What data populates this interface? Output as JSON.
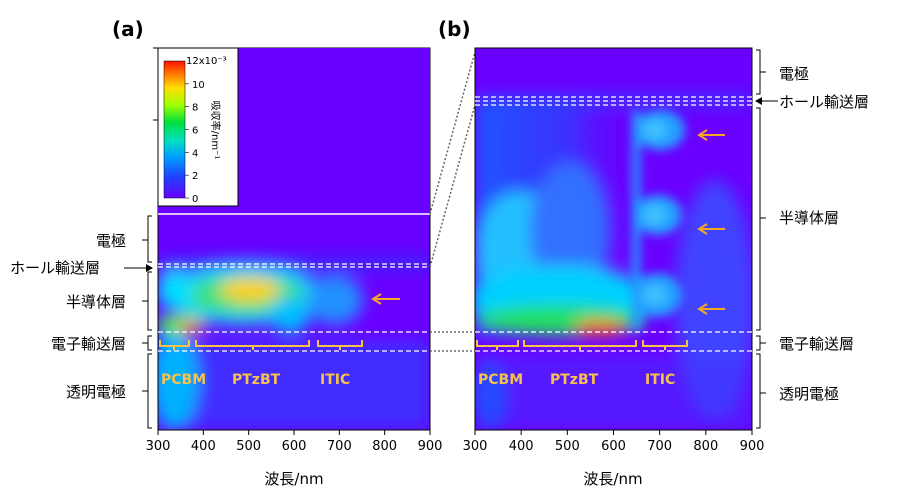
{
  "chart_data": {
    "type": "heatmap",
    "colorbar": {
      "label": "吸収率/nm⁻¹",
      "max_label": "12x10⁻³",
      "ticks": [
        "10",
        "8",
        "6",
        "4",
        "2",
        "0"
      ],
      "range": [
        0,
        12
      ],
      "colors": [
        "#6a00ff",
        "#2040ff",
        "#00c0ff",
        "#00e080",
        "#40ff00",
        "#c0ff00",
        "#ffd000",
        "#ff3000"
      ]
    },
    "xlabel": "波長/nm",
    "xticks": [
      "300",
      "400",
      "500",
      "600",
      "700",
      "800",
      "900"
    ],
    "xlim": [
      300,
      900
    ],
    "layers": [
      "電極",
      "ホール輸送層",
      "半導体層",
      "電子輸送層",
      "透明電極"
    ],
    "materials": [
      {
        "name": "PCBM",
        "range": [
          300,
          380
        ]
      },
      {
        "name": "PTzBT",
        "range": [
          390,
          640
        ]
      },
      {
        "name": "ITIC",
        "range": [
          655,
          750
        ]
      }
    ],
    "hotspots_a": [
      {
        "x": 370,
        "depth": 0.66,
        "value": 12
      },
      {
        "x": 510,
        "depth": 0.28,
        "value": 8
      },
      {
        "x": 700,
        "depth": 0.35,
        "value": 4
      }
    ],
    "hotspots_b": [
      {
        "x": 570,
        "depth": 0.94,
        "value": 11
      },
      {
        "x": 700,
        "depth": 0.1,
        "value": 3
      },
      {
        "x": 700,
        "depth": 0.45,
        "value": 3
      },
      {
        "x": 700,
        "depth": 0.8,
        "value": 3
      }
    ],
    "panels": [
      {
        "id": "a",
        "label": "(a)"
      },
      {
        "id": "b",
        "label": "(b)"
      }
    ]
  },
  "arrow_color": "#f5a623"
}
